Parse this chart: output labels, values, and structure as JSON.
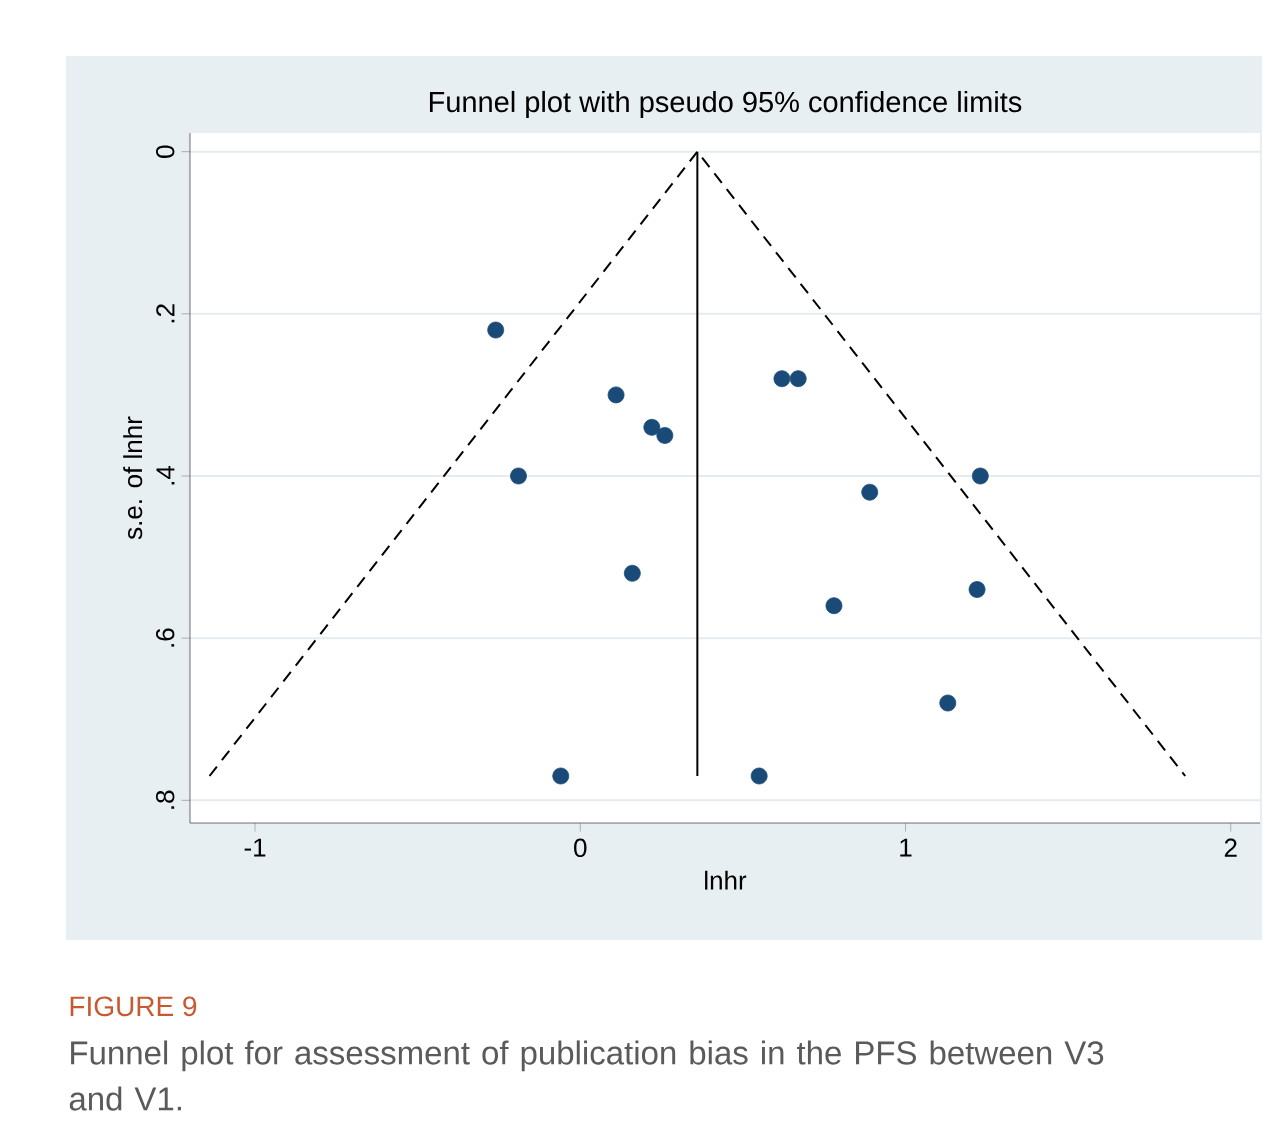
{
  "chart_data": {
    "type": "scatter",
    "title": "Funnel plot with pseudo 95% confidence limits",
    "xlabel": "lnhr",
    "ylabel": "s.e. of lnhr",
    "annotations": [
      "FIGURE 9",
      "Funnel plot for assessment of publication bias in the PFS between V3 and V1."
    ],
    "xlim": [
      -1.2,
      2.09
    ],
    "ylim": [
      0.828,
      -0.023
    ],
    "xticks": [
      -1,
      0,
      1,
      2
    ],
    "yticks": [
      0,
      {
        "value": 0.2,
        "label": ".2"
      },
      {
        "value": 0.4,
        "label": ".4"
      },
      {
        "value": 0.6,
        "label": ".6"
      },
      {
        "value": 0.8,
        "label": ".8"
      }
    ],
    "grid": "y",
    "series": [
      {
        "type": "line",
        "color": "#000000",
        "line_style": "dashed",
        "marker": "none",
        "x": [
          -1.14,
          0.36,
          1.86
        ],
        "values": [
          0.77,
          0,
          0.77
        ]
      },
      {
        "type": "line",
        "color": "#000000",
        "line_style": "solid",
        "marker": "none",
        "x": [
          0.36,
          0.36
        ],
        "values": [
          0,
          0.77
        ]
      },
      {
        "color": "#1a4a78",
        "marker": "circle",
        "x": [
          -0.26,
          0.11,
          0.22,
          0.26,
          -0.19,
          0.62,
          0.67,
          1.23,
          0.89,
          0.16,
          0.78,
          1.22,
          1.13,
          -0.06,
          0.55
        ],
        "values": [
          0.22,
          0.3,
          0.34,
          0.35,
          0.4,
          0.28,
          0.28,
          0.4,
          0.42,
          0.52,
          0.56,
          0.54,
          0.68,
          0.77,
          0.77
        ]
      }
    ]
  }
}
